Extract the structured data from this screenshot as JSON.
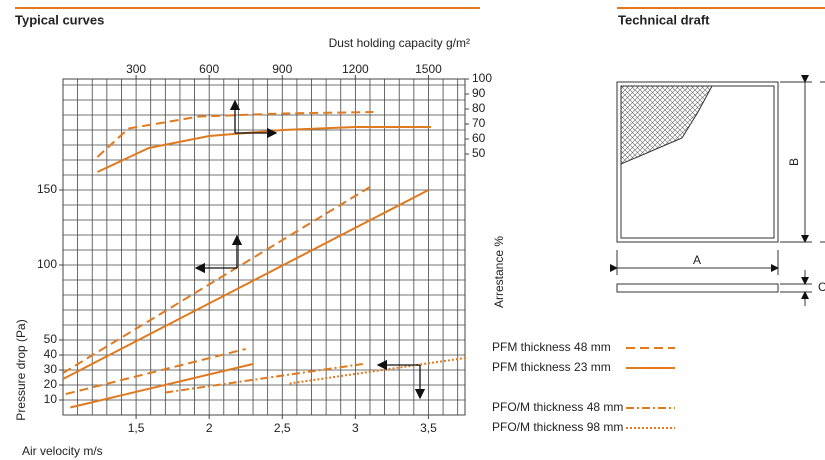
{
  "header": {
    "left_title": "Typical curves",
    "right_title": "Technical draft"
  },
  "chart_data": {
    "type": "line",
    "xlabel": "Air velocity m/s",
    "ylabel": "Pressure drop (Pa)",
    "x2label": "Dust holding capacity g/m²",
    "y2label": "Arrestance %",
    "xlim": [
      1.0,
      3.75
    ],
    "xticks": [
      {
        "value": 1.5,
        "label": "1,5"
      },
      2,
      {
        "value": 2.5,
        "label": "2,5"
      },
      3,
      {
        "value": 3.5,
        "label": "3,5"
      }
    ],
    "ylim": [
      0,
      224
    ],
    "yticks": [
      10,
      20,
      30,
      40,
      50,
      100,
      150
    ],
    "x2lim": [
      0,
      1650
    ],
    "x2ticks": [
      300,
      600,
      900,
      1200,
      1500
    ],
    "y2lim": [
      -124,
      100
    ],
    "y2ticks": [
      50,
      60,
      70,
      80,
      90,
      100
    ],
    "xgrid_step": 0.1,
    "ygrid_step": 10,
    "series": [
      {
        "name": "PFM thickness 48 mm",
        "color": "#e07a1f",
        "dash": "9 5",
        "x": [
          1.0,
          3.1,
          null,
          1.02,
          2.25
        ],
        "values": [
          28,
          152,
          null,
          14,
          44
        ],
        "arrestance": {
          "x": [
            141,
            269,
            559,
            902,
            1274
          ],
          "values": [
            48,
            67,
            75,
            77,
            78
          ]
        }
      },
      {
        "name": "PFM thickness 23 mm",
        "color": "#e07a1f",
        "dash": "none",
        "x": [
          1.0,
          3.5,
          null,
          1.05,
          2.3
        ],
        "values": [
          24,
          150,
          null,
          5,
          34
        ],
        "arrestance": {
          "x": [
            141,
            352,
            600,
            902,
            1200,
            1510
          ],
          "values": [
            38,
            54,
            62,
            66,
            68,
            68
          ]
        }
      },
      {
        "name": "PFO/M thickness 48 mm",
        "color": "#e07a1f",
        "dash": "8 3 2 3",
        "x": [
          1.7,
          3.05
        ],
        "values": [
          15,
          34
        ]
      },
      {
        "name": "PFO/M thickness 98 mm",
        "color": "#e07a1f",
        "dash": "2 2",
        "x": [
          2.55,
          3.75
        ],
        "values": [
          21,
          38
        ]
      }
    ]
  },
  "draft": {
    "width_label": "A",
    "height_label": "B",
    "depth_label": "C"
  }
}
